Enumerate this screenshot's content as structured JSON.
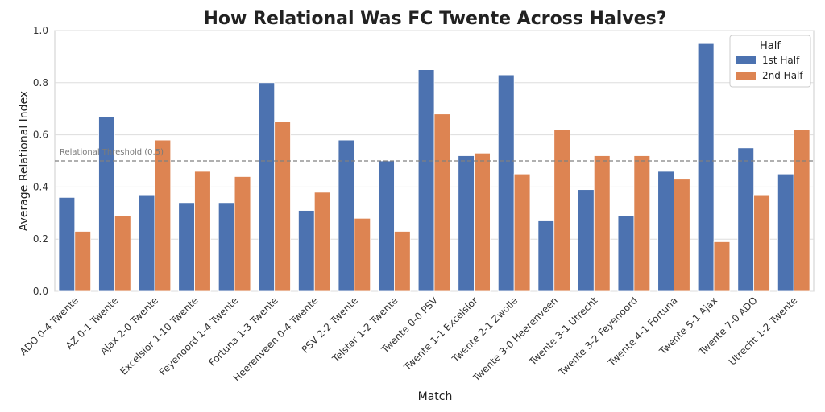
{
  "chart_data": {
    "type": "bar",
    "title": "How Relational Was FC Twente Across Halves?",
    "xlabel": "Match",
    "ylabel": "Average Relational Index",
    "ylim": [
      0,
      1.0
    ],
    "yticks": [
      "0.0",
      "0.2",
      "0.4",
      "0.6",
      "0.8",
      "1.0"
    ],
    "grid": true,
    "legend": {
      "title": "Half",
      "placement": "top-right"
    },
    "categories": [
      "ADO 0-4 Twente",
      "AZ 0-1 Twente",
      "Ajax 2-0 Twente",
      "Excelsior 1-10 Twente",
      "Feyenoord 1-4 Twente",
      "Fortuna 1-3 Twente",
      "Heerenveen 0-4 Twente",
      "PSV 2-2 Twente",
      "Telstar 1-2 Twente",
      "Twente 0-0 PSV",
      "Twente 1-1 Excelsior",
      "Twente 2-1 Zwolle",
      "Twente 3-0 Heerenveen",
      "Twente 3-1 Utrecht",
      "Twente 3-2 Feyenoord",
      "Twente 4-1 Fortuna",
      "Twente 5-1 Ajax",
      "Twente 7-0 ADO",
      "Utrecht 1-2 Twente"
    ],
    "series": [
      {
        "name": "1st Half",
        "color": "#4c72b0",
        "values": [
          0.36,
          0.67,
          0.37,
          0.34,
          0.34,
          0.8,
          0.31,
          0.58,
          0.5,
          0.85,
          0.52,
          0.83,
          0.27,
          0.39,
          0.29,
          0.46,
          0.95,
          0.55,
          0.45
        ]
      },
      {
        "name": "2nd Half",
        "color": "#dd8452",
        "values": [
          0.23,
          0.29,
          0.58,
          0.46,
          0.44,
          0.65,
          0.38,
          0.28,
          0.23,
          0.68,
          0.53,
          0.45,
          0.62,
          0.52,
          0.52,
          0.43,
          0.19,
          0.37,
          0.62
        ]
      }
    ],
    "threshold": {
      "value": 0.5,
      "label": "Relational Threshold (0.5)",
      "color": "#808080"
    }
  }
}
